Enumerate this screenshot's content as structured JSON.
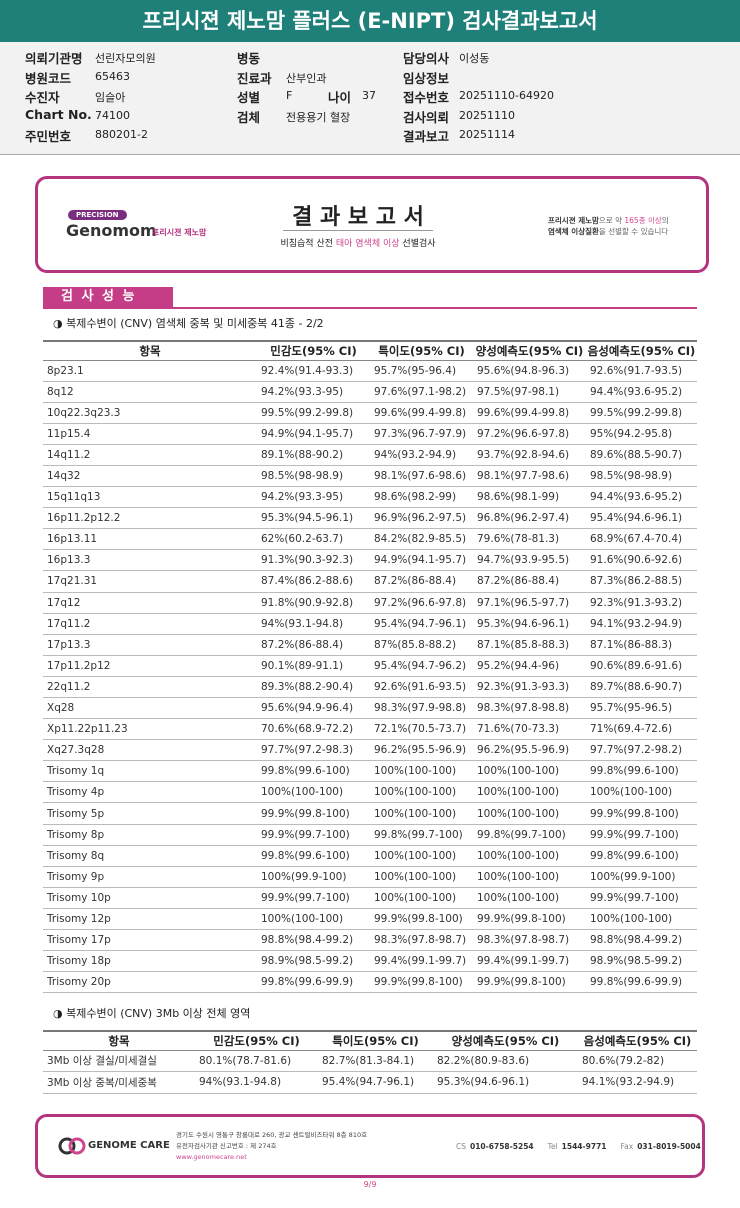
{
  "header": {
    "title": "프리시젼 제노맘 플러스 (E-NIPT) 검사결과보고서"
  },
  "info": {
    "col1": [
      {
        "label": "의뢰기관명",
        "value": "선린자모의원"
      },
      {
        "label": "병원코드",
        "value": "65463"
      },
      {
        "label": "수진자",
        "value": "임슬아"
      },
      {
        "label": "Chart No.",
        "value": "74100"
      },
      {
        "label": "주민번호",
        "value": "880201-2"
      }
    ],
    "col2": [
      {
        "label": "병동"
      },
      {
        "label": "진료과",
        "value": "산부인과"
      },
      {
        "label": "성별",
        "value": "F",
        "label2": "나이",
        "value2": "37"
      },
      {
        "label": "검체",
        "value": "전용용기 혈장"
      }
    ],
    "col3": [
      {
        "label": "담당의사",
        "value": "이성동"
      },
      {
        "label": "임상정보"
      },
      {
        "label": "접수번호",
        "value": "20251110-64920"
      },
      {
        "label": "검사의뢰",
        "value": "20251110"
      },
      {
        "label": "결과보고",
        "value": "20251114"
      }
    ]
  },
  "banner": {
    "logo_tag": "PRECISION",
    "logo_name": "Genomom",
    "logo_sub": "프리시젼 제노맘",
    "title": "결 과 보 고 서",
    "subtitle": [
      "비침습적 산전 ",
      "태아 염색체 이상",
      " 선별검사"
    ],
    "note_line1": [
      "프리시젼 제노맘",
      "으로 약 ",
      "165종 이상",
      "의"
    ],
    "note_line2": [
      "염색체 이상질환",
      "을 선별할 수 있습니다"
    ]
  },
  "section": {
    "tab": "검 사 성 능"
  },
  "table1": {
    "caption": "◑ 복제수변이 (CNV) 염색체 중복 및 미세중복 41종 - 2/2",
    "headers": [
      "항목",
      "민감도(95% CI)",
      "특이도(95% CI)",
      "양성예측도(95% CI)",
      "음성예측도(95% CI)"
    ],
    "rows": [
      [
        "8p23.1",
        "92.4%(91.4-93.3)",
        "95.7%(95-96.4)",
        "95.6%(94.8-96.3)",
        "92.6%(91.7-93.5)"
      ],
      [
        "8q12",
        "94.2%(93.3-95)",
        "97.6%(97.1-98.2)",
        "97.5%(97-98.1)",
        "94.4%(93.6-95.2)"
      ],
      [
        "10q22.3q23.3",
        "99.5%(99.2-99.8)",
        "99.6%(99.4-99.8)",
        "99.6%(99.4-99.8)",
        "99.5%(99.2-99.8)"
      ],
      [
        "11p15.4",
        "94.9%(94.1-95.7)",
        "97.3%(96.7-97.9)",
        "97.2%(96.6-97.8)",
        "95%(94.2-95.8)"
      ],
      [
        "14q11.2",
        "89.1%(88-90.2)",
        "94%(93.2-94.9)",
        "93.7%(92.8-94.6)",
        "89.6%(88.5-90.7)"
      ],
      [
        "14q32",
        "98.5%(98-98.9)",
        "98.1%(97.6-98.6)",
        "98.1%(97.7-98.6)",
        "98.5%(98-98.9)"
      ],
      [
        "15q11q13",
        "94.2%(93.3-95)",
        "98.6%(98.2-99)",
        "98.6%(98.1-99)",
        "94.4%(93.6-95.2)"
      ],
      [
        "16p11.2p12.2",
        "95.3%(94.5-96.1)",
        "96.9%(96.2-97.5)",
        "96.8%(96.2-97.4)",
        "95.4%(94.6-96.1)"
      ],
      [
        "16p13.11",
        "62%(60.2-63.7)",
        "84.2%(82.9-85.5)",
        "79.6%(78-81.3)",
        "68.9%(67.4-70.4)"
      ],
      [
        "16p13.3",
        "91.3%(90.3-92.3)",
        "94.9%(94.1-95.7)",
        "94.7%(93.9-95.5)",
        "91.6%(90.6-92.6)"
      ],
      [
        "17q21.31",
        "87.4%(86.2-88.6)",
        "87.2%(86-88.4)",
        "87.2%(86-88.4)",
        "87.3%(86.2-88.5)"
      ],
      [
        "17q12",
        "91.8%(90.9-92.8)",
        "97.2%(96.6-97.8)",
        "97.1%(96.5-97.7)",
        "92.3%(91.3-93.2)"
      ],
      [
        "17q11.2",
        "94%(93.1-94.8)",
        "95.4%(94.7-96.1)",
        "95.3%(94.6-96.1)",
        "94.1%(93.2-94.9)"
      ],
      [
        "17p13.3",
        "87.2%(86-88.4)",
        "87%(85.8-88.2)",
        "87.1%(85.8-88.3)",
        "87.1%(86-88.3)"
      ],
      [
        "17p11.2p12",
        "90.1%(89-91.1)",
        "95.4%(94.7-96.2)",
        "95.2%(94.4-96)",
        "90.6%(89.6-91.6)"
      ],
      [
        "22q11.2",
        "89.3%(88.2-90.4)",
        "92.6%(91.6-93.5)",
        "92.3%(91.3-93.3)",
        "89.7%(88.6-90.7)"
      ],
      [
        "Xq28",
        "95.6%(94.9-96.4)",
        "98.3%(97.9-98.8)",
        "98.3%(97.8-98.8)",
        "95.7%(95-96.5)"
      ],
      [
        "Xp11.22p11.23",
        "70.6%(68.9-72.2)",
        "72.1%(70.5-73.7)",
        "71.6%(70-73.3)",
        "71%(69.4-72.6)"
      ],
      [
        "Xq27.3q28",
        "97.7%(97.2-98.3)",
        "96.2%(95.5-96.9)",
        "96.2%(95.5-96.9)",
        "97.7%(97.2-98.2)"
      ],
      [
        "Trisomy 1q",
        "99.8%(99.6-100)",
        "100%(100-100)",
        "100%(100-100)",
        "99.8%(99.6-100)"
      ],
      [
        "Trisomy 4p",
        "100%(100-100)",
        "100%(100-100)",
        "100%(100-100)",
        "100%(100-100)"
      ],
      [
        "Trisomy 5p",
        "99.9%(99.8-100)",
        "100%(100-100)",
        "100%(100-100)",
        "99.9%(99.8-100)"
      ],
      [
        "Trisomy 8p",
        "99.9%(99.7-100)",
        "99.8%(99.7-100)",
        "99.8%(99.7-100)",
        "99.9%(99.7-100)"
      ],
      [
        "Trisomy 8q",
        "99.8%(99.6-100)",
        "100%(100-100)",
        "100%(100-100)",
        "99.8%(99.6-100)"
      ],
      [
        "Trisomy 9p",
        "100%(99.9-100)",
        "100%(100-100)",
        "100%(100-100)",
        "100%(99.9-100)"
      ],
      [
        "Trisomy 10p",
        "99.9%(99.7-100)",
        "100%(100-100)",
        "100%(100-100)",
        "99.9%(99.7-100)"
      ],
      [
        "Trisomy 12p",
        "100%(100-100)",
        "99.9%(99.8-100)",
        "99.9%(99.8-100)",
        "100%(100-100)"
      ],
      [
        "Trisomy 17p",
        "98.8%(98.4-99.2)",
        "98.3%(97.8-98.7)",
        "98.3%(97.8-98.7)",
        "98.8%(98.4-99.2)"
      ],
      [
        "Trisomy 18p",
        "98.9%(98.5-99.2)",
        "99.4%(99.1-99.7)",
        "99.4%(99.1-99.7)",
        "98.9%(98.5-99.2)"
      ],
      [
        "Trisomy 20p",
        "99.8%(99.6-99.9)",
        "99.9%(99.8-100)",
        "99.9%(99.8-100)",
        "99.8%(99.6-99.9)"
      ]
    ]
  },
  "table2": {
    "caption": "◑ 복제수변이 (CNV) 3Mb 이상 전체 영역",
    "headers": [
      "항목",
      "민감도(95% CI)",
      "특이도(95% CI)",
      "양성예측도(95% CI)",
      "음성예측도(95% CI)"
    ],
    "rows": [
      [
        "3Mb 이상 결실/미세결실",
        "80.1%(78.7-81.6)",
        "82.7%(81.3-84.1)",
        "82.2%(80.9-83.6)",
        "80.6%(79.2-82)"
      ],
      [
        "3Mb 이상 중복/미세중복",
        "94%(93.1-94.8)",
        "95.4%(94.7-96.1)",
        "95.3%(94.6-96.1)",
        "94.1%(93.2-94.9)"
      ]
    ]
  },
  "footer": {
    "brand": "GENOME CARE",
    "address": [
      "경기도 수원시 영통구 창룡대로 260, 광교 센트럴비즈타워 8층 810호",
      "유전자검사기관 신고번호 : 제 274호",
      "www.genomecare.net"
    ],
    "contacts": [
      {
        "label": "CS",
        "value": "010-6758-5254"
      },
      {
        "label": "Tel",
        "value": "1544-9771"
      },
      {
        "label": "Fax",
        "value": "031-8019-5004"
      }
    ],
    "page": "9/9"
  }
}
